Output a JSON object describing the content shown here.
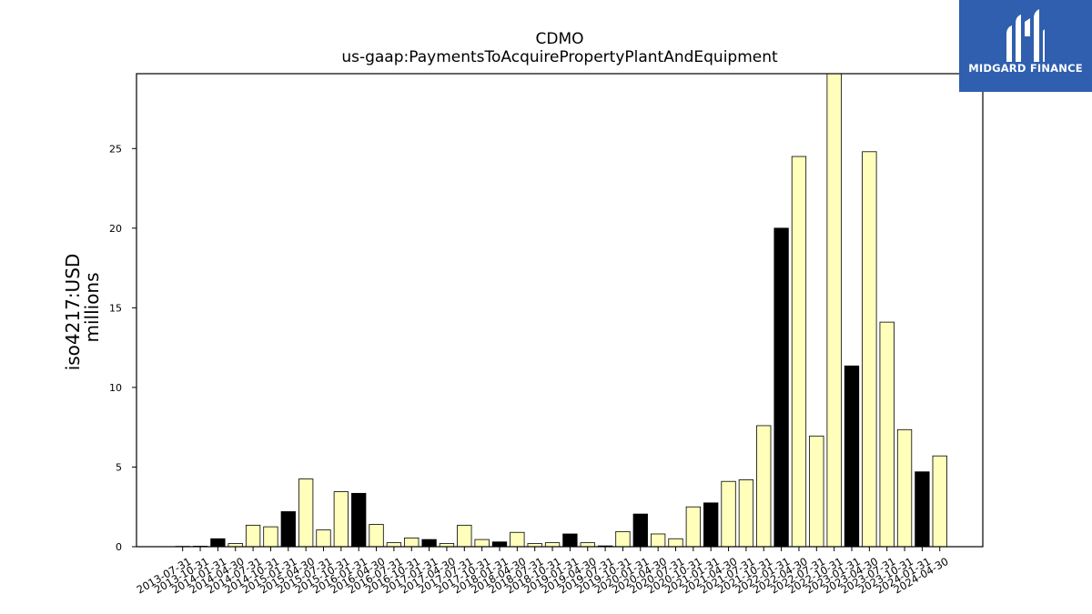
{
  "brand": {
    "name": "MIDGARD FINANCE",
    "bg_color": "#2f5fae",
    "icon": "midgard-m-logo-icon"
  },
  "chart_data": {
    "type": "bar",
    "title": "CDMO",
    "subtitle": "us-gaap:PaymentsToAcquirePropertyPlantAndEquipment",
    "ylabel": [
      "iso4217:USD",
      "millions"
    ],
    "xlabel": "",
    "ylim": [
      0,
      29.7
    ],
    "yticks": [
      0,
      5,
      10,
      15,
      20,
      25
    ],
    "grid": false,
    "colors": {
      "quarter": "#ffffbb",
      "annual": "#000000",
      "edge": "#000000"
    },
    "categories": [
      "2013-07-31",
      "2013-10-31",
      "2014-01-31",
      "2014-04-30",
      "2014-07-31",
      "2014-10-31",
      "2015-01-31",
      "2015-04-30",
      "2015-07-31",
      "2015-10-31",
      "2016-01-31",
      "2016-04-30",
      "2016-07-31",
      "2016-10-31",
      "2017-01-31",
      "2017-04-30",
      "2017-07-31",
      "2017-10-31",
      "2018-01-31",
      "2018-04-30",
      "2018-07-31",
      "2018-10-31",
      "2019-01-31",
      "2019-04-30",
      "2019-07-31",
      "2019-10-31",
      "2020-01-31",
      "2020-04-30",
      "2020-07-31",
      "2020-10-31",
      "2021-01-31",
      "2021-04-30",
      "2021-07-31",
      "2021-10-31",
      "2022-01-31",
      "2022-04-30",
      "2022-07-31",
      "2022-10-31",
      "2023-01-31",
      "2023-04-30",
      "2023-07-31",
      "2023-10-31",
      "2024-01-31",
      "2024-04-30"
    ],
    "values": [
      0.02,
      0.03,
      0.5,
      0.2,
      1.35,
      1.25,
      2.2,
      4.25,
      1.05,
      3.45,
      3.35,
      1.4,
      0.25,
      0.55,
      0.45,
      0.2,
      1.35,
      0.45,
      0.3,
      0.9,
      0.2,
      0.25,
      0.8,
      0.25,
      0.05,
      0.95,
      2.05,
      0.8,
      0.5,
      2.5,
      2.75,
      4.1,
      4.2,
      7.6,
      20.0,
      24.5,
      6.95,
      29.7,
      11.35,
      24.8,
      14.1,
      7.35,
      4.7,
      5.7
    ],
    "annual_flags": [
      0,
      0,
      1,
      0,
      0,
      0,
      1,
      0,
      0,
      0,
      1,
      0,
      0,
      0,
      1,
      0,
      0,
      0,
      1,
      0,
      0,
      0,
      1,
      0,
      0,
      0,
      1,
      0,
      0,
      0,
      1,
      0,
      0,
      0,
      1,
      0,
      0,
      0,
      1,
      0,
      0,
      0,
      1,
      0
    ]
  }
}
